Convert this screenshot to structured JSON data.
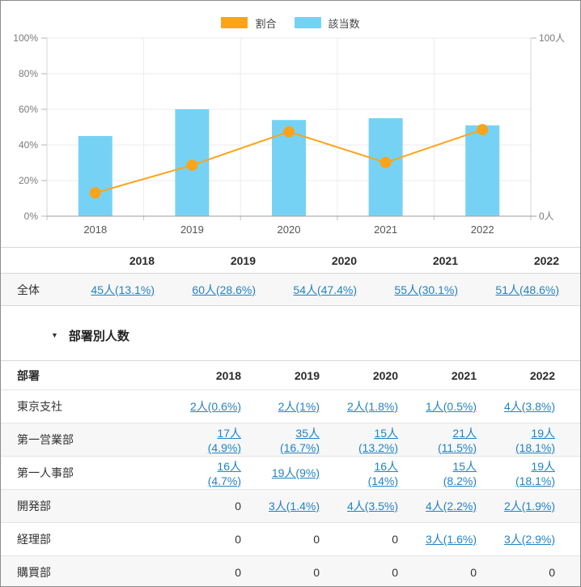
{
  "legend": {
    "items": [
      {
        "label": "割合",
        "color": "#FAA41B"
      },
      {
        "label": "該当数",
        "color": "#76D2F5"
      }
    ]
  },
  "colors": {
    "ratio_orange": "#FAA41B",
    "count_blue": "#76D2F5",
    "link_blue": "#2283C3"
  },
  "chart_data": {
    "type": "bar",
    "categories": [
      "2018",
      "2019",
      "2020",
      "2021",
      "2022"
    ],
    "series": [
      {
        "name": "該当数",
        "type": "bar",
        "axis": "right",
        "values": [
          45,
          60,
          54,
          55,
          51
        ],
        "color": "#76D2F5"
      },
      {
        "name": "割合",
        "type": "line",
        "axis": "left",
        "values": [
          13.1,
          28.6,
          47.4,
          30.1,
          48.6
        ],
        "color": "#FAA41B"
      }
    ],
    "title": "",
    "xlabel": "",
    "ylabel": "",
    "left_axis": {
      "tick_labels": [
        "0%",
        "20%",
        "40%",
        "60%",
        "80%",
        "100%"
      ],
      "tick_values": [
        0,
        20,
        40,
        60,
        80,
        100
      ],
      "min": 0,
      "max": 100
    },
    "right_axis": {
      "tick_labels": [
        "0人",
        "100人"
      ],
      "tick_values": [
        0,
        100
      ],
      "min": 0,
      "max": 100
    },
    "grid": true,
    "legend_position": "top"
  },
  "summary_table": {
    "columns": [
      "",
      "2018",
      "2019",
      "2020",
      "2021",
      "2022"
    ],
    "rows": [
      {
        "label": "全体",
        "values": [
          "45人(13.1%)",
          "60人(28.6%)",
          "54人(47.4%)",
          "55人(30.1%)",
          "51人(48.6%)"
        ]
      }
    ]
  },
  "department_section": {
    "title": "部署別人数",
    "collapse_icon": "triangle-down",
    "table": {
      "columns": [
        "部署",
        "2018",
        "2019",
        "2020",
        "2021",
        "2022"
      ],
      "rows": [
        {
          "label": "東京支社",
          "values": [
            "2人(0.6%)",
            "2人(1%)",
            "2人(1.8%)",
            "1人(0.5%)",
            "4人(3.8%)"
          ]
        },
        {
          "label": "第一営業部",
          "values": [
            "17人(4.9%)",
            "35人(16.7%)",
            "15人(13.2%)",
            "21人(11.5%)",
            "19人(18.1%)"
          ]
        },
        {
          "label": "第一人事部",
          "values": [
            "16人(4.7%)",
            "19人(9%)",
            "16人(14%)",
            "15人(8.2%)",
            "19人(18.1%)"
          ]
        },
        {
          "label": "開発部",
          "values": [
            "0",
            "3人(1.4%)",
            "4人(3.5%)",
            "4人(2.2%)",
            "2人(1.9%)"
          ]
        },
        {
          "label": "経理部",
          "values": [
            "0",
            "0",
            "0",
            "3人(1.6%)",
            "3人(2.9%)"
          ]
        },
        {
          "label": "購買部",
          "values": [
            "0",
            "0",
            "0",
            "0",
            "0"
          ]
        }
      ]
    }
  }
}
